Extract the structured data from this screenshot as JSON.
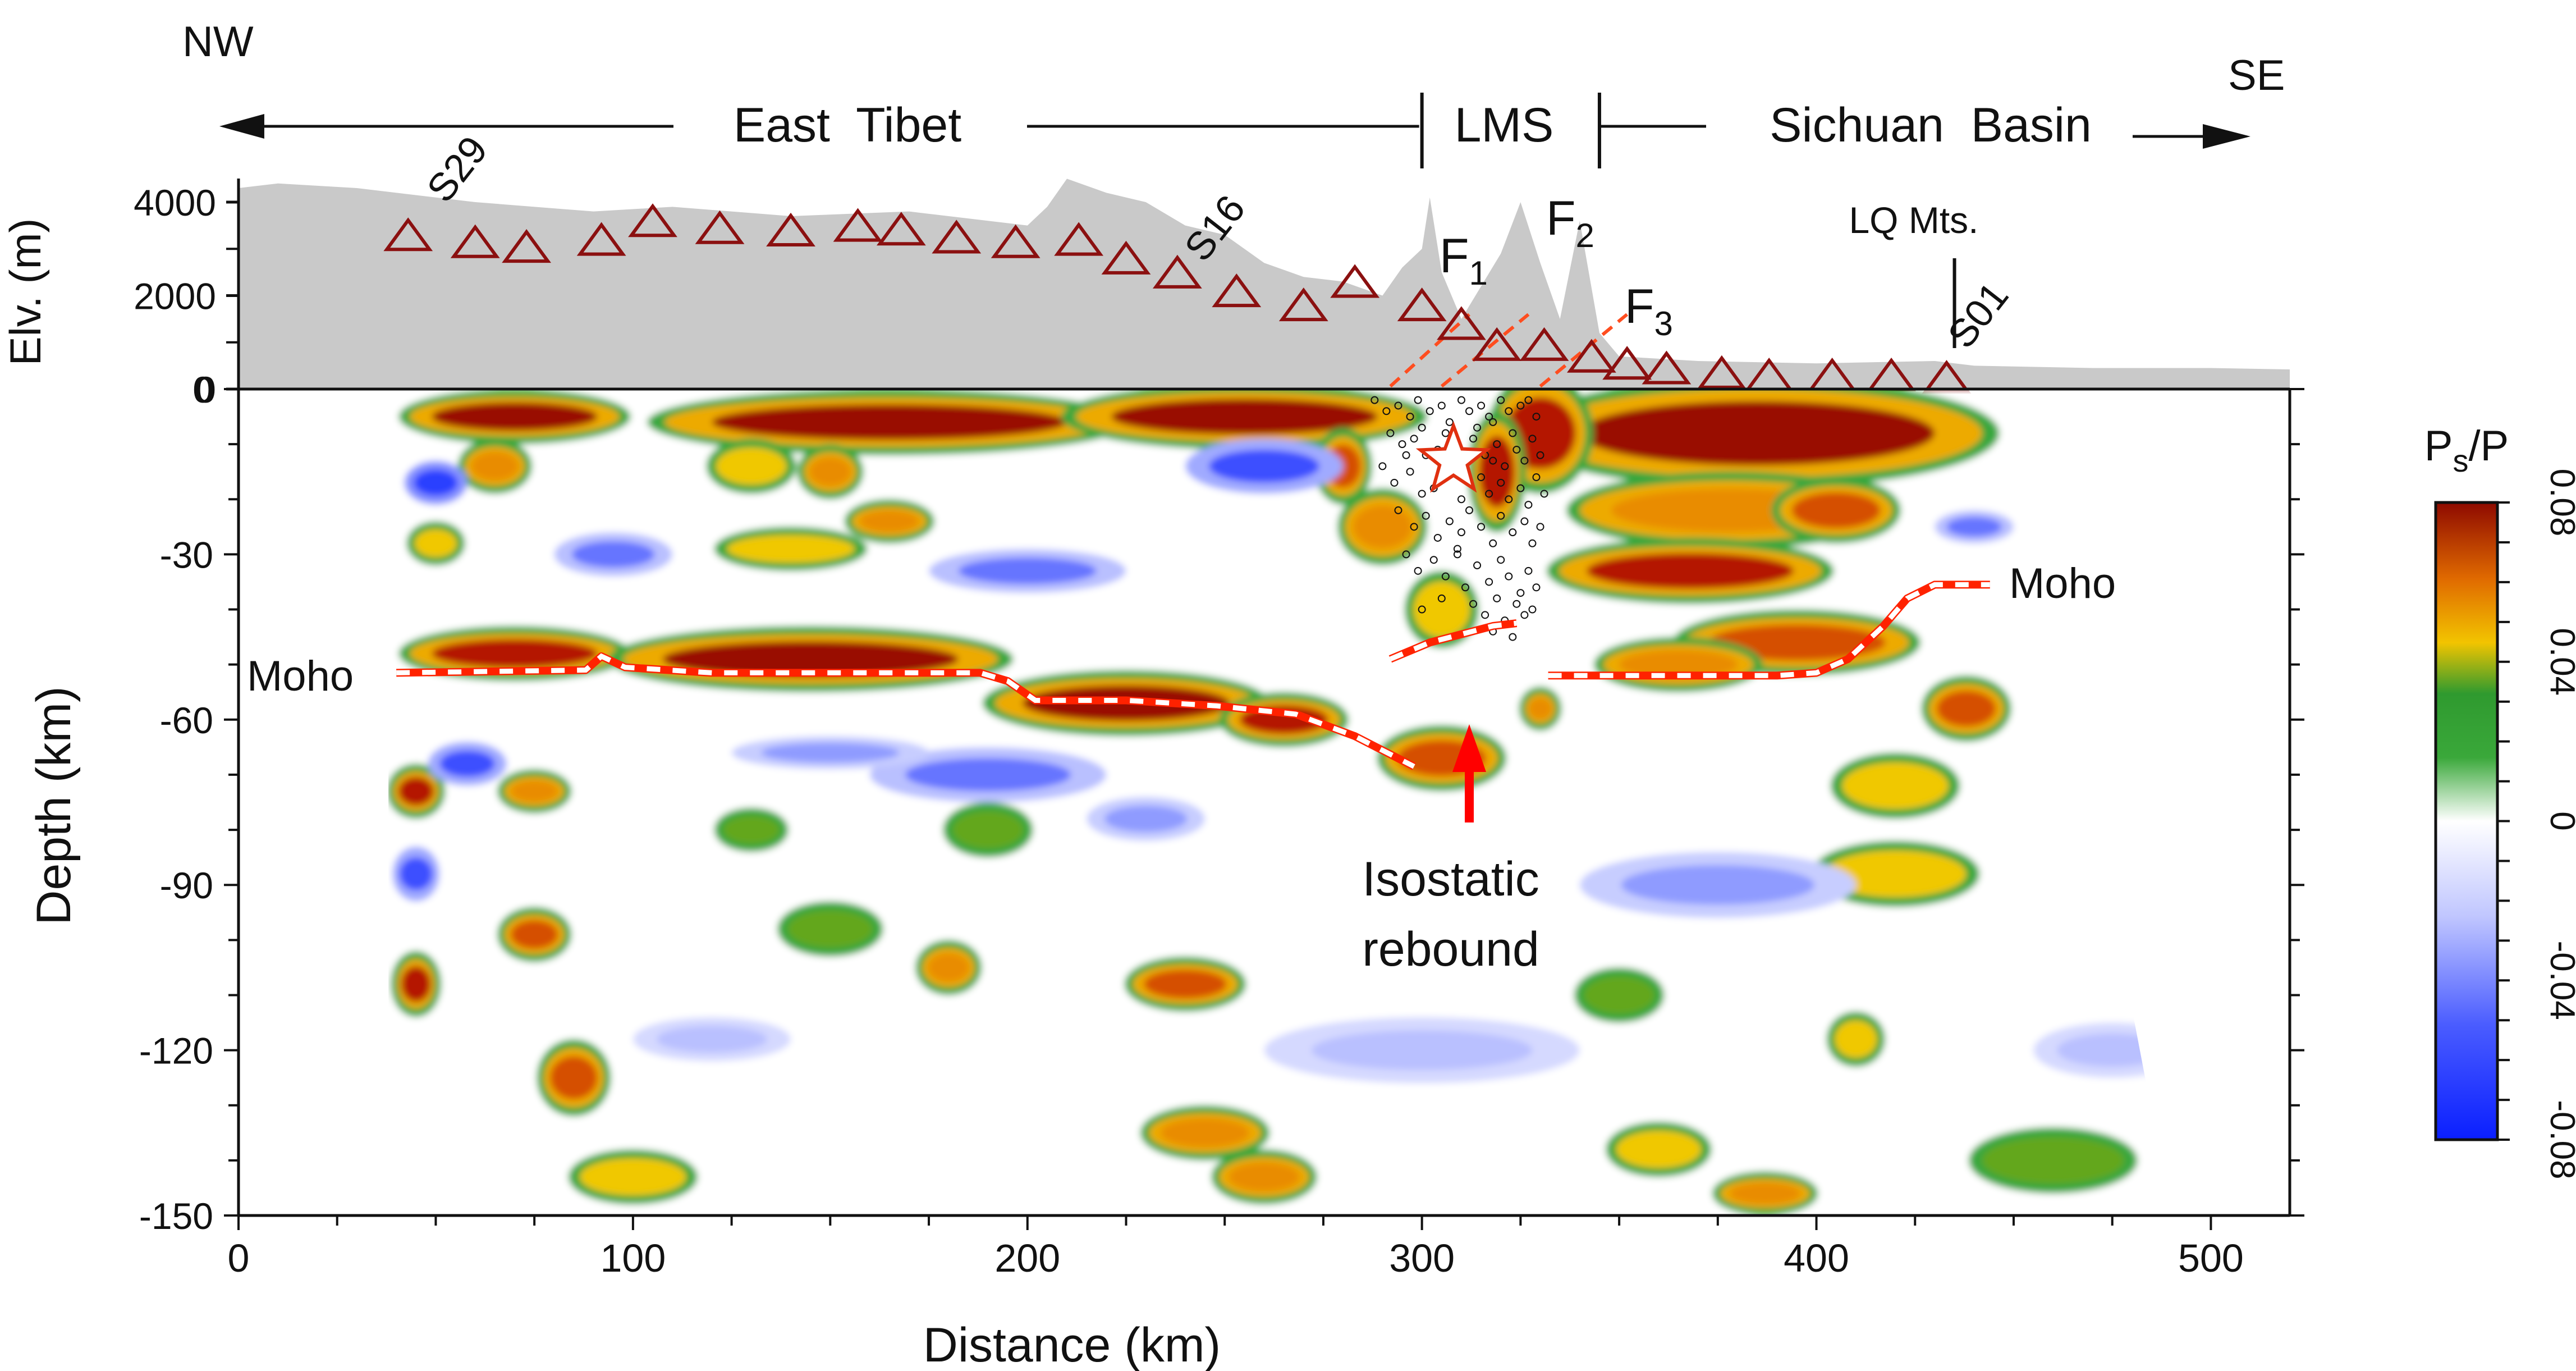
{
  "chart_data": {
    "type": "heatmap",
    "title": "",
    "header": {
      "nw": "NW",
      "se": "SE",
      "regions": [
        {
          "label": "East  Tibet",
          "range_km": [
            0,
            300
          ]
        },
        {
          "label": "LMS",
          "range_km": [
            300,
            345
          ]
        },
        {
          "label": "Sichuan  Basin",
          "range_km": [
            345,
            520
          ]
        }
      ]
    },
    "topo": {
      "ylabel": "Elv. (m)",
      "yticks": [
        0,
        2000,
        4000
      ],
      "ylim": [
        0,
        4600
      ],
      "profile": [
        [
          0,
          4300
        ],
        [
          10,
          4400
        ],
        [
          30,
          4300
        ],
        [
          60,
          4000
        ],
        [
          90,
          3800
        ],
        [
          110,
          3900
        ],
        [
          140,
          3700
        ],
        [
          170,
          3800
        ],
        [
          200,
          3500
        ],
        [
          205,
          3900
        ],
        [
          210,
          4500
        ],
        [
          220,
          4200
        ],
        [
          230,
          4000
        ],
        [
          240,
          3500
        ],
        [
          250,
          3300
        ],
        [
          260,
          2700
        ],
        [
          270,
          2400
        ],
        [
          280,
          2300
        ],
        [
          290,
          2000
        ],
        [
          295,
          2600
        ],
        [
          300,
          3000
        ],
        [
          302,
          4100
        ],
        [
          305,
          2500
        ],
        [
          310,
          1500
        ],
        [
          320,
          2900
        ],
        [
          325,
          4000
        ],
        [
          330,
          2700
        ],
        [
          335,
          1500
        ],
        [
          340,
          3600
        ],
        [
          345,
          1200
        ],
        [
          350,
          700
        ],
        [
          370,
          600
        ],
        [
          400,
          550
        ],
        [
          430,
          600
        ],
        [
          440,
          500
        ],
        [
          470,
          450
        ],
        [
          500,
          450
        ],
        [
          520,
          420
        ]
      ]
    },
    "stations": {
      "x_km": [
        43,
        60,
        73,
        92,
        105,
        122,
        140,
        157,
        168,
        182,
        197,
        213,
        225,
        238,
        253,
        270,
        283,
        300,
        310,
        319,
        331,
        343,
        352,
        362,
        376,
        388,
        404,
        419,
        433
      ],
      "elev_m": [
        3300,
        3150,
        3050,
        3200,
        3600,
        3450,
        3400,
        3500,
        3420,
        3250,
        3150,
        3200,
        2800,
        2500,
        2100,
        1800,
        2300,
        1800,
        1400,
        950,
        950,
        700,
        550,
        450,
        350,
        300,
        300,
        300,
        250
      ],
      "labels": [
        {
          "name": "S29",
          "x_km": 48
        },
        {
          "name": "S16",
          "x_km": 245
        },
        {
          "name": "S01",
          "x_km": 437
        }
      ]
    },
    "faults": [
      {
        "name": "F",
        "sub": "1",
        "x_km": 305
      },
      {
        "name": "F",
        "sub": "2",
        "x_km": 332
      },
      {
        "name": "F",
        "sub": "3",
        "x_km": 352
      }
    ],
    "lq_mts": "LQ Mts.",
    "xlabel": "Distance (km)",
    "ylabel": "Depth (km)",
    "xlim": [
      0,
      520
    ],
    "ylim": [
      -150,
      0
    ],
    "xticks": [
      0,
      100,
      200,
      300,
      400,
      500
    ],
    "yticks": [
      0,
      -30,
      -60,
      -90,
      -120,
      -150
    ],
    "colorbar": {
      "label": "P",
      "label_sub": "s",
      "label_tail": "/P",
      "min": -0.08,
      "max": 0.08,
      "ticks": [
        -0.08,
        -0.04,
        0,
        0.04,
        0.08
      ]
    },
    "moho_west": [
      [
        40,
        -51.5
      ],
      [
        88,
        -51
      ],
      [
        92,
        -48.5
      ],
      [
        98,
        -50.5
      ],
      [
        120,
        -51.5
      ],
      [
        188,
        -51.5
      ],
      [
        195,
        -53
      ],
      [
        202,
        -56.5
      ],
      [
        225,
        -56.5
      ],
      [
        248,
        -57.5
      ],
      [
        268,
        -59
      ],
      [
        283,
        -63
      ],
      [
        298,
        -68.5
      ]
    ],
    "moho_center": [
      [
        292,
        -49
      ],
      [
        302,
        -46
      ],
      [
        318,
        -43
      ],
      [
        324,
        -42.5
      ]
    ],
    "moho_east": [
      [
        332,
        -52
      ],
      [
        390,
        -52
      ],
      [
        400,
        -51.5
      ],
      [
        408,
        -49
      ],
      [
        417,
        -43
      ],
      [
        423,
        -38
      ],
      [
        430,
        -35.5
      ],
      [
        444,
        -35.5
      ]
    ],
    "moho_label_west": "Moho",
    "moho_label_east": "Moho",
    "rebound_label": [
      "Isostatic",
      "rebound"
    ],
    "rebound_arrow_x_km": 312,
    "hypocenter": {
      "x_km": 308,
      "depth_km": -13
    },
    "seismicity": [
      [
        288,
        -2
      ],
      [
        291,
        -4
      ],
      [
        294,
        -3
      ],
      [
        297,
        -5
      ],
      [
        299,
        -2
      ],
      [
        302,
        -4
      ],
      [
        305,
        -3
      ],
      [
        307,
        -6
      ],
      [
        310,
        -2
      ],
      [
        312,
        -4
      ],
      [
        315,
        -3
      ],
      [
        317,
        -5
      ],
      [
        320,
        -2
      ],
      [
        322,
        -4
      ],
      [
        325,
        -3
      ],
      [
        327,
        -2
      ],
      [
        329,
        -5
      ],
      [
        292,
        -8
      ],
      [
        295,
        -10
      ],
      [
        298,
        -9
      ],
      [
        301,
        -12
      ],
      [
        304,
        -11
      ],
      [
        313,
        -9
      ],
      [
        316,
        -12
      ],
      [
        319,
        -10
      ],
      [
        321,
        -14
      ],
      [
        324,
        -11
      ],
      [
        326,
        -13
      ],
      [
        328,
        -9
      ],
      [
        330,
        -12
      ],
      [
        290,
        -14
      ],
      [
        293,
        -17
      ],
      [
        297,
        -15
      ],
      [
        300,
        -19
      ],
      [
        303,
        -18
      ],
      [
        315,
        -16
      ],
      [
        317,
        -19
      ],
      [
        320,
        -17
      ],
      [
        322,
        -20
      ],
      [
        325,
        -18
      ],
      [
        327,
        -21
      ],
      [
        329,
        -16
      ],
      [
        331,
        -19
      ],
      [
        294,
        -22
      ],
      [
        298,
        -25
      ],
      [
        301,
        -23
      ],
      [
        304,
        -27
      ],
      [
        307,
        -24
      ],
      [
        310,
        -26
      ],
      [
        312,
        -22
      ],
      [
        315,
        -25
      ],
      [
        318,
        -28
      ],
      [
        320,
        -23
      ],
      [
        323,
        -26
      ],
      [
        326,
        -24
      ],
      [
        328,
        -28
      ],
      [
        330,
        -25
      ],
      [
        296,
        -30
      ],
      [
        299,
        -33
      ],
      [
        303,
        -31
      ],
      [
        306,
        -34
      ],
      [
        309,
        -30
      ],
      [
        311,
        -36
      ],
      [
        314,
        -32
      ],
      [
        317,
        -35
      ],
      [
        320,
        -31
      ],
      [
        322,
        -34
      ],
      [
        325,
        -37
      ],
      [
        327,
        -33
      ],
      [
        329,
        -36
      ],
      [
        313,
        -39
      ],
      [
        316,
        -41
      ],
      [
        319,
        -38
      ],
      [
        321,
        -42
      ],
      [
        324,
        -39
      ],
      [
        326,
        -41
      ],
      [
        328,
        -40
      ],
      [
        300,
        -40
      ],
      [
        305,
        -38
      ],
      [
        318,
        -44
      ],
      [
        323,
        -45
      ],
      [
        310,
        -20
      ],
      [
        311,
        -15
      ],
      [
        314,
        -7
      ],
      [
        318,
        -6
      ],
      [
        306,
        -8
      ],
      [
        309,
        -29
      ],
      [
        318,
        -13
      ],
      [
        323,
        -8
      ],
      [
        300,
        -7
      ],
      [
        296,
        -12
      ]
    ],
    "anomalies": [
      {
        "x": 70,
        "y": -5,
        "rx": 28,
        "ry": 4,
        "v": 0.09
      },
      {
        "x": 165,
        "y": -6,
        "rx": 60,
        "ry": 5,
        "v": 0.09
      },
      {
        "x": 255,
        "y": -5,
        "rx": 45,
        "ry": 5,
        "v": 0.09
      },
      {
        "x": 385,
        "y": -8,
        "rx": 60,
        "ry": 9,
        "v": 0.09
      },
      {
        "x": 330,
        "y": -8,
        "rx": 12,
        "ry": 10,
        "v": 0.08
      },
      {
        "x": 319,
        "y": -15,
        "rx": 6,
        "ry": 10,
        "v": 0.08
      },
      {
        "x": 65,
        "y": -14,
        "rx": 8,
        "ry": 4,
        "v": 0.06
      },
      {
        "x": 130,
        "y": -14,
        "rx": 10,
        "ry": 4,
        "v": 0.05
      },
      {
        "x": 150,
        "y": -15,
        "rx": 7,
        "ry": 4,
        "v": 0.06
      },
      {
        "x": 280,
        "y": -14,
        "rx": 6,
        "ry": 6,
        "v": 0.07
      },
      {
        "x": 378,
        "y": -22,
        "rx": 40,
        "ry": 6,
        "v": 0.06
      },
      {
        "x": 405,
        "y": -22,
        "rx": 15,
        "ry": 5,
        "v": 0.07
      },
      {
        "x": 50,
        "y": -28,
        "rx": 6,
        "ry": 3,
        "v": 0.05
      },
      {
        "x": 140,
        "y": -29,
        "rx": 18,
        "ry": 3,
        "v": 0.05
      },
      {
        "x": 165,
        "y": -24,
        "rx": 10,
        "ry": 3,
        "v": 0.06
      },
      {
        "x": 290,
        "y": -25,
        "rx": 10,
        "ry": 6,
        "v": 0.06
      },
      {
        "x": 368,
        "y": -33,
        "rx": 35,
        "ry": 5,
        "v": 0.08
      },
      {
        "x": 70,
        "y": -48,
        "rx": 28,
        "ry": 4,
        "v": 0.08
      },
      {
        "x": 145,
        "y": -49,
        "rx": 50,
        "ry": 5,
        "v": 0.09
      },
      {
        "x": 225,
        "y": -57,
        "rx": 35,
        "ry": 5,
        "v": 0.09
      },
      {
        "x": 265,
        "y": -60,
        "rx": 15,
        "ry": 4,
        "v": 0.08
      },
      {
        "x": 395,
        "y": -46,
        "rx": 30,
        "ry": 5,
        "v": 0.07
      },
      {
        "x": 365,
        "y": -50,
        "rx": 20,
        "ry": 4,
        "v": 0.06
      },
      {
        "x": 305,
        "y": -67,
        "rx": 15,
        "ry": 5,
        "v": 0.07
      },
      {
        "x": 305,
        "y": -40,
        "rx": 8,
        "ry": 6,
        "v": 0.05
      },
      {
        "x": 438,
        "y": -58,
        "rx": 10,
        "ry": 5,
        "v": 0.07
      },
      {
        "x": 330,
        "y": -58,
        "rx": 4,
        "ry": 3,
        "v": 0.06
      },
      {
        "x": 45,
        "y": -73,
        "rx": 6,
        "ry": 4,
        "v": 0.08
      },
      {
        "x": 75,
        "y": -73,
        "rx": 8,
        "ry": 3,
        "v": 0.06
      },
      {
        "x": 75,
        "y": -99,
        "rx": 8,
        "ry": 4,
        "v": 0.07
      },
      {
        "x": 45,
        "y": -108,
        "rx": 5,
        "ry": 5,
        "v": 0.08
      },
      {
        "x": 85,
        "y": -125,
        "rx": 8,
        "ry": 6,
        "v": 0.07
      },
      {
        "x": 100,
        "y": -143,
        "rx": 15,
        "ry": 4,
        "v": 0.05
      },
      {
        "x": 180,
        "y": -105,
        "rx": 7,
        "ry": 4,
        "v": 0.06
      },
      {
        "x": 240,
        "y": -108,
        "rx": 14,
        "ry": 4,
        "v": 0.07
      },
      {
        "x": 260,
        "y": -143,
        "rx": 12,
        "ry": 4,
        "v": 0.06
      },
      {
        "x": 245,
        "y": -135,
        "rx": 15,
        "ry": 4,
        "v": 0.06
      },
      {
        "x": 410,
        "y": -118,
        "rx": 6,
        "ry": 4,
        "v": 0.05
      },
      {
        "x": 360,
        "y": -138,
        "rx": 12,
        "ry": 4,
        "v": 0.05
      },
      {
        "x": 387,
        "y": -146,
        "rx": 12,
        "ry": 3,
        "v": 0.06
      },
      {
        "x": 420,
        "y": -88,
        "rx": 20,
        "ry": 5,
        "v": 0.05
      },
      {
        "x": 460,
        "y": -140,
        "rx": 20,
        "ry": 5,
        "v": 0.04
      },
      {
        "x": 150,
        "y": -98,
        "rx": 12,
        "ry": 4,
        "v": 0.04
      },
      {
        "x": 190,
        "y": -80,
        "rx": 10,
        "ry": 4,
        "v": 0.04
      },
      {
        "x": 130,
        "y": -80,
        "rx": 8,
        "ry": 3,
        "v": 0.04
      },
      {
        "x": 350,
        "y": -110,
        "rx": 10,
        "ry": 4,
        "v": 0.04
      },
      {
        "x": 420,
        "y": -72,
        "rx": 15,
        "ry": 5,
        "v": 0.05
      },
      {
        "x": 50,
        "y": -17,
        "rx": 8,
        "ry": 4,
        "v": -0.07
      },
      {
        "x": 58,
        "y": -68,
        "rx": 10,
        "ry": 4,
        "v": -0.06
      },
      {
        "x": 190,
        "y": -70,
        "rx": 30,
        "ry": 5,
        "v": -0.05
      },
      {
        "x": 95,
        "y": -30,
        "rx": 15,
        "ry": 4,
        "v": -0.05
      },
      {
        "x": 200,
        "y": -33,
        "rx": 25,
        "ry": 4,
        "v": -0.05
      },
      {
        "x": 260,
        "y": -14,
        "rx": 20,
        "ry": 5,
        "v": -0.06
      },
      {
        "x": 375,
        "y": -90,
        "rx": 35,
        "ry": 6,
        "v": -0.04
      },
      {
        "x": 440,
        "y": -25,
        "rx": 10,
        "ry": 3,
        "v": -0.05
      },
      {
        "x": 45,
        "y": -88,
        "rx": 6,
        "ry": 5,
        "v": -0.06
      },
      {
        "x": 230,
        "y": -78,
        "rx": 15,
        "ry": 4,
        "v": -0.04
      },
      {
        "x": 300,
        "y": -120,
        "rx": 40,
        "ry": 6,
        "v": -0.03
      },
      {
        "x": 120,
        "y": -118,
        "rx": 20,
        "ry": 4,
        "v": -0.03
      },
      {
        "x": 150,
        "y": -66,
        "rx": 25,
        "ry": 3,
        "v": -0.04
      },
      {
        "x": 475,
        "y": -120,
        "rx": 20,
        "ry": 5,
        "v": -0.03
      }
    ]
  }
}
